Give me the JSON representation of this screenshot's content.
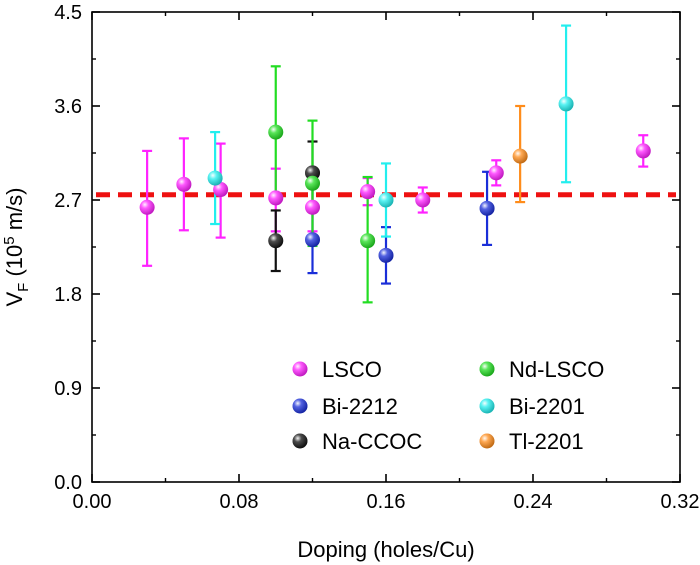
{
  "chart_data": {
    "type": "scatter",
    "title": "",
    "xlabel": "Doping (holes/Cu)",
    "ylabel": {
      "main": "V",
      "sub": "F",
      "unit_open": " (10",
      "exp": "5",
      "unit_close": " m/s)"
    },
    "xlim": [
      0.0,
      0.32
    ],
    "ylim": [
      0.0,
      4.5
    ],
    "xticks": [
      "0.00",
      "0.08",
      "0.16",
      "0.24",
      "0.32"
    ],
    "yticks": [
      "0.0",
      "0.9",
      "1.8",
      "2.7",
      "3.6",
      "4.5"
    ],
    "grid": false,
    "legend_position": "bottom-right",
    "reference_line": {
      "y": 2.75,
      "style": "dashed",
      "color": "#ee1111"
    },
    "series": [
      {
        "name": "LSCO",
        "color": "#ff22ff",
        "points": [
          {
            "x": 0.03,
            "y": 2.63,
            "err_low": 2.07,
            "err_high": 3.17
          },
          {
            "x": 0.05,
            "y": 2.85,
            "err_low": 2.41,
            "err_high": 3.29
          },
          {
            "x": 0.07,
            "y": 2.8,
            "err_low": 2.34,
            "err_high": 3.24
          },
          {
            "x": 0.1,
            "y": 2.72,
            "err_low": 2.4,
            "err_high": 3.0
          },
          {
            "x": 0.12,
            "y": 2.63,
            "err_low": 2.4,
            "err_high": 2.86
          },
          {
            "x": 0.15,
            "y": 2.78,
            "err_low": 2.65,
            "err_high": 2.91
          },
          {
            "x": 0.18,
            "y": 2.7,
            "err_low": 2.58,
            "err_high": 2.82
          },
          {
            "x": 0.22,
            "y": 2.96,
            "err_low": 2.84,
            "err_high": 3.08
          },
          {
            "x": 0.3,
            "y": 3.17,
            "err_low": 3.02,
            "err_high": 3.32
          }
        ]
      },
      {
        "name": "Bi-2212",
        "color": "#1a2ed8",
        "points": [
          {
            "x": 0.12,
            "y": 2.32,
            "err_low": 2.0,
            "err_high": 2.64
          },
          {
            "x": 0.16,
            "y": 2.17,
            "err_low": 1.9,
            "err_high": 2.44
          },
          {
            "x": 0.215,
            "y": 2.62,
            "err_low": 2.27,
            "err_high": 2.97
          }
        ]
      },
      {
        "name": "Na-CCOC",
        "color": "#111111",
        "points": [
          {
            "x": 0.1,
            "y": 2.31,
            "err_low": 2.02,
            "err_high": 2.6
          },
          {
            "x": 0.12,
            "y": 2.96,
            "err_low": 2.66,
            "err_high": 3.26
          }
        ]
      },
      {
        "name": "Nd-LSCO",
        "color": "#22dd22",
        "points": [
          {
            "x": 0.1,
            "y": 3.35,
            "err_low": 2.72,
            "err_high": 3.98
          },
          {
            "x": 0.12,
            "y": 2.86,
            "err_low": 2.26,
            "err_high": 3.46
          },
          {
            "x": 0.15,
            "y": 2.31,
            "err_low": 1.72,
            "err_high": 2.92
          }
        ]
      },
      {
        "name": "Bi-2201",
        "color": "#22eeee",
        "points": [
          {
            "x": 0.067,
            "y": 2.91,
            "err_low": 2.47,
            "err_high": 3.35
          },
          {
            "x": 0.16,
            "y": 2.7,
            "err_low": 2.35,
            "err_high": 3.05
          },
          {
            "x": 0.258,
            "y": 3.62,
            "err_low": 2.87,
            "err_high": 4.37
          }
        ]
      },
      {
        "name": "Tl-2201",
        "color": "#ff8c1a",
        "points": [
          {
            "x": 0.233,
            "y": 3.12,
            "err_low": 2.68,
            "err_high": 3.6
          }
        ]
      }
    ]
  }
}
